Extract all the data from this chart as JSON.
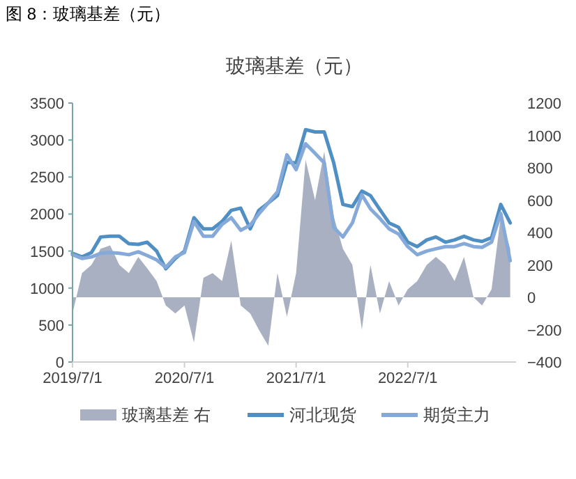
{
  "chart_data": {
    "type": "line",
    "title": "图 8：玻璃基差（元）",
    "subtitle": "玻璃基差（元）",
    "x": [
      "2019-07",
      "2019-08",
      "2019-09",
      "2019-10",
      "2019-11",
      "2019-12",
      "2020-01",
      "2020-02",
      "2020-03",
      "2020-04",
      "2020-05",
      "2020-06",
      "2020-07",
      "2020-08",
      "2020-09",
      "2020-10",
      "2020-11",
      "2020-12",
      "2021-01",
      "2021-02",
      "2021-03",
      "2021-04",
      "2021-05",
      "2021-06",
      "2021-07",
      "2021-08",
      "2021-09",
      "2021-10",
      "2021-11",
      "2021-12",
      "2022-01",
      "2022-02",
      "2022-03",
      "2022-04",
      "2022-05",
      "2022-06",
      "2022-07",
      "2022-08",
      "2022-09",
      "2022-10",
      "2022-11",
      "2022-12",
      "2023-01",
      "2023-02",
      "2023-03",
      "2023-04",
      "2023-05",
      "2023-06"
    ],
    "series": [
      {
        "name": "玻璃基差 右",
        "type": "area",
        "axis": "y2",
        "color": "#a8b0c2",
        "values": [
          -100,
          150,
          200,
          300,
          320,
          200,
          150,
          250,
          180,
          100,
          -50,
          -100,
          -50,
          -280,
          120,
          150,
          100,
          350,
          -50,
          -100,
          -200,
          -300,
          150,
          -120,
          150,
          850,
          600,
          900,
          500,
          300,
          200,
          -200,
          200,
          -100,
          100,
          -50,
          50,
          100,
          200,
          250,
          200,
          100,
          250,
          0,
          -50,
          50,
          500,
          300
        ]
      },
      {
        "name": "河北现货",
        "color": "#4f8fc4",
        "values": [
          1470,
          1420,
          1480,
          1690,
          1700,
          1700,
          1600,
          1590,
          1620,
          1500,
          1260,
          1400,
          1500,
          1950,
          1800,
          1800,
          1900,
          2050,
          2080,
          1800,
          2050,
          2150,
          2250,
          2700,
          2690,
          3140,
          3110,
          3110,
          2690,
          2130,
          2100,
          2310,
          2250,
          2060,
          1880,
          1820,
          1620,
          1560,
          1650,
          1690,
          1620,
          1650,
          1700,
          1650,
          1630,
          1680,
          2130,
          1880
        ]
      },
      {
        "name": "期货主力",
        "color": "#85a9d9",
        "values": [
          1450,
          1400,
          1420,
          1470,
          1480,
          1470,
          1450,
          1490,
          1440,
          1380,
          1280,
          1420,
          1480,
          1900,
          1700,
          1700,
          1860,
          1950,
          1780,
          1850,
          2000,
          2150,
          2300,
          2800,
          2600,
          2950,
          2820,
          2690,
          1820,
          1690,
          1880,
          2260,
          2070,
          1940,
          1800,
          1730,
          1560,
          1450,
          1500,
          1530,
          1560,
          1560,
          1600,
          1560,
          1550,
          1620,
          2010,
          1370
        ]
      }
    ],
    "xlim": [
      "2019-07-01",
      "2023-06-20"
    ],
    "xticks": [
      {
        "value": "2019-07-01",
        "label": "2019/7/1"
      },
      {
        "value": "2020-07-01",
        "label": "2020/7/1"
      },
      {
        "value": "2021-07-01",
        "label": "2021/7/1"
      },
      {
        "value": "2022-07-01",
        "label": "2022/7/1"
      }
    ],
    "ylim": [
      0,
      3500
    ],
    "yticks": [
      0,
      500,
      1000,
      1500,
      2000,
      2500,
      3000,
      3500
    ],
    "y2lim": [
      -400,
      1200
    ],
    "y2ticks": [
      -400,
      -200,
      0,
      200,
      400,
      600,
      800,
      1000,
      1200
    ],
    "legend": "bottom"
  }
}
